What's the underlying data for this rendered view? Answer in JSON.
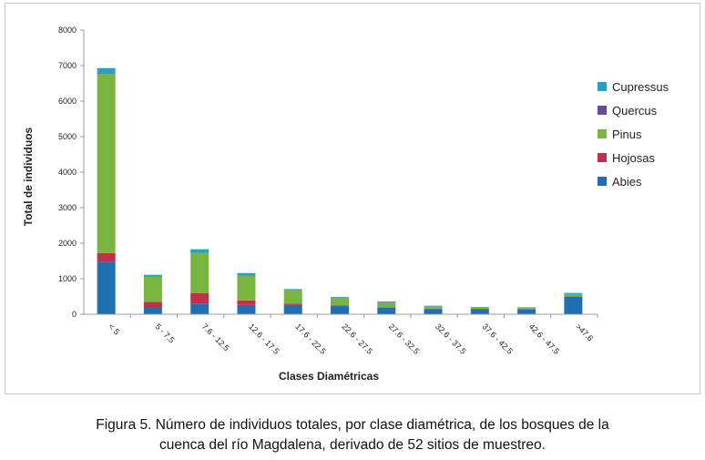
{
  "chart_data": {
    "type": "stacked-bar",
    "categories": [
      "< 5",
      "5 - 7.5",
      "7.6 - 12.5",
      "12.6 - 17.5",
      "17.6 - 22.5",
      "22.6 - 27.5",
      "27.6 - 32.5",
      "32.6 - 37.5",
      "37.6 - 42.5",
      "42.6 - 47.5",
      ">47.6"
    ],
    "series": [
      {
        "name": "Abies",
        "color": "#1f6fb5",
        "values": [
          1470,
          180,
          300,
          260,
          260,
          230,
          190,
          150,
          150,
          140,
          490
        ]
      },
      {
        "name": "Hojosas",
        "color": "#c0304a",
        "values": [
          250,
          170,
          290,
          130,
          40,
          20,
          10,
          5,
          5,
          5,
          10
        ]
      },
      {
        "name": "Pinus",
        "color": "#7ab540",
        "values": [
          5050,
          700,
          1140,
          700,
          380,
          220,
          120,
          60,
          30,
          30,
          60
        ]
      },
      {
        "name": "Quercus",
        "color": "#6a4a9c",
        "values": [
          10,
          10,
          10,
          10,
          5,
          5,
          5,
          5,
          5,
          5,
          5
        ]
      },
      {
        "name": "Cupressus",
        "color": "#23a3c4",
        "values": [
          150,
          50,
          90,
          60,
          25,
          15,
          35,
          20,
          15,
          15,
          35
        ]
      }
    ],
    "legend_order": [
      "Cupressus",
      "Quercus",
      "Pinus",
      "Hojosas",
      "Abies"
    ],
    "ylim": [
      0,
      8000
    ],
    "yticks": [
      "0",
      "1000",
      "2000",
      "3000",
      "4000",
      "5000",
      "6000",
      "7000",
      "8000"
    ],
    "xlabel": "Clases Diamétricas",
    "ylabel": "Total de individuos",
    "grid": false,
    "legend_position": "right"
  },
  "caption": {
    "line1": "Figura 5. Número de individuos totales, por clase diamétrica, de los bosques de la",
    "line2": "cuenca del río Magdalena, derivado de 52 sitios de muestreo."
  }
}
